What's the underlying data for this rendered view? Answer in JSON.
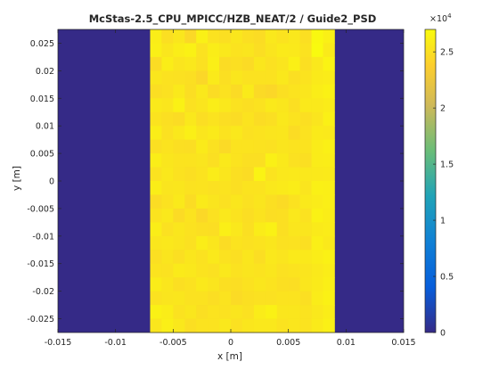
{
  "chart_data": {
    "type": "heatmap",
    "title": "McStas-2.5_CPU_MPICC/HZB_NEAT/2 / Guide2_PSD",
    "xlabel": "x [m]",
    "ylabel": "y [m]",
    "xlim": [
      -0.015,
      0.015
    ],
    "ylim": [
      -0.0275,
      0.0275
    ],
    "x_ticks": [
      -0.015,
      -0.01,
      -0.005,
      0,
      0.005,
      0.01,
      0.015
    ],
    "x_tick_labels": [
      "-0.015",
      "-0.01",
      "-0.005",
      "0",
      "0.005",
      "0.01",
      "0.015"
    ],
    "y_ticks": [
      0.025,
      0.02,
      0.015,
      0.01,
      0.005,
      0,
      -0.005,
      -0.01,
      -0.015,
      -0.02,
      -0.025
    ],
    "y_tick_labels": [
      "0.025",
      "0.02",
      "0.015",
      "0.01",
      "0.005",
      "0",
      "-0.005",
      "-0.01",
      "-0.015",
      "-0.02",
      "-0.025"
    ],
    "colorbar": {
      "min": 0,
      "max": 27000,
      "exponent_label": "×10",
      "exponent_power": "4",
      "ticks": [
        0,
        5000,
        10000,
        15000,
        20000,
        25000
      ],
      "tick_labels": [
        "0",
        "0.5",
        "1",
        "1.5",
        "2",
        "2.5"
      ]
    },
    "background_value": 0,
    "bright_region": {
      "x_min": -0.007,
      "x_max": 0.009,
      "y_min": -0.0275,
      "y_max": 0.0275
    },
    "grid_columns": 16,
    "grid_rows": 22,
    "cells": [
      [
        26000,
        25000,
        25500,
        24500,
        26200,
        25200,
        25000,
        25500,
        25000,
        24800,
        25600,
        25300,
        25600,
        25000,
        26800,
        26200
      ],
      [
        26100,
        25500,
        26000,
        26300,
        25200,
        26000,
        25600,
        25300,
        25400,
        24900,
        25400,
        25800,
        25700,
        25200,
        26900,
        25800
      ],
      [
        24800,
        26000,
        25400,
        25600,
        25100,
        26100,
        24800,
        25000,
        24700,
        25500,
        25100,
        25400,
        26200,
        25000,
        25600,
        26400
      ],
      [
        25500,
        25200,
        25100,
        25000,
        24400,
        25800,
        25000,
        25500,
        25200,
        25200,
        25200,
        25600,
        25000,
        25300,
        25800,
        25900
      ],
      [
        24900,
        25100,
        25700,
        24900,
        25600,
        24800,
        25200,
        24700,
        25800,
        24600,
        24400,
        25000,
        25300,
        25500,
        26000,
        26300
      ],
      [
        25700,
        25500,
        26300,
        25100,
        25400,
        26000,
        25600,
        25200,
        25000,
        25200,
        25700,
        25500,
        25000,
        25700,
        25700,
        25900
      ],
      [
        25300,
        25000,
        24800,
        25600,
        24900,
        25300,
        24900,
        24800,
        25300,
        24800,
        25000,
        25600,
        25300,
        25000,
        25400,
        26200
      ],
      [
        26000,
        25100,
        25600,
        26100,
        25500,
        25800,
        25300,
        25600,
        25100,
        25300,
        25400,
        25500,
        24800,
        25200,
        25800,
        25700
      ],
      [
        25000,
        25300,
        25000,
        24900,
        25800,
        25100,
        24600,
        25300,
        25300,
        25200,
        25100,
        25400,
        25300,
        25300,
        25900,
        26200
      ],
      [
        26000,
        25500,
        25300,
        25300,
        25400,
        25000,
        25700,
        25300,
        25000,
        25000,
        26200,
        25700,
        25100,
        25000,
        25900,
        26000
      ],
      [
        25200,
        25600,
        25200,
        25000,
        25300,
        25900,
        25500,
        25000,
        24800,
        26400,
        25300,
        25600,
        25700,
        25600,
        25700,
        25800
      ],
      [
        26000,
        25400,
        25500,
        25200,
        25300,
        25100,
        25300,
        25000,
        25300,
        25300,
        25600,
        25800,
        26000,
        25400,
        26200,
        26100
      ],
      [
        24800,
        25200,
        25700,
        24800,
        25800,
        25400,
        25100,
        25500,
        25100,
        25400,
        25000,
        24700,
        25200,
        25700,
        25900,
        26100
      ],
      [
        25300,
        25600,
        24700,
        25300,
        24500,
        25100,
        25600,
        25300,
        24900,
        25300,
        24900,
        25000,
        25600,
        25200,
        26300,
        26000
      ],
      [
        26000,
        25100,
        25500,
        25200,
        25000,
        24900,
        26100,
        25600,
        25000,
        25900,
        26300,
        25000,
        25500,
        25400,
        25800,
        25900
      ],
      [
        25500,
        25600,
        25400,
        25100,
        26000,
        25500,
        24800,
        25300,
        25100,
        25300,
        25500,
        25100,
        25200,
        25000,
        26100,
        25700
      ],
      [
        25000,
        25400,
        25000,
        25500,
        25200,
        25700,
        25200,
        25000,
        25500,
        24900,
        25600,
        25400,
        25800,
        25700,
        26000,
        26300
      ],
      [
        25300,
        25200,
        25800,
        25600,
        25300,
        25100,
        25600,
        25200,
        25400,
        25300,
        25500,
        25100,
        25300,
        25400,
        25700,
        26000
      ],
      [
        25900,
        25500,
        25000,
        25200,
        25700,
        25400,
        25000,
        24900,
        25200,
        25500,
        25300,
        25000,
        24900,
        25500,
        25800,
        26100
      ],
      [
        25200,
        25400,
        25500,
        25200,
        25200,
        24900,
        25300,
        24700,
        25000,
        25100,
        25100,
        25300,
        25300,
        25000,
        25900,
        26300
      ],
      [
        26300,
        26000,
        25200,
        25500,
        25000,
        25300,
        25200,
        25400,
        25100,
        25900,
        26300,
        25500,
        25500,
        25300,
        25600,
        26000
      ],
      [
        25500,
        26100,
        25600,
        25000,
        25300,
        25300,
        25600,
        25100,
        25500,
        25600,
        25600,
        25300,
        25500,
        25300,
        25800,
        26200
      ]
    ],
    "grid": false,
    "legend": "none"
  }
}
